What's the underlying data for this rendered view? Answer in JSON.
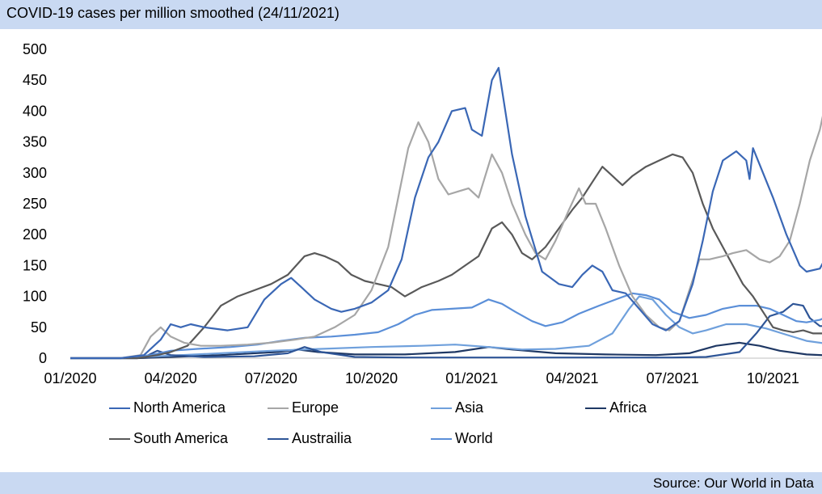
{
  "header": {
    "title": "COVID-19 cases per million smoothed (24/11/2021)"
  },
  "footer": {
    "source": "Source: Our World in Data"
  },
  "chart_data": {
    "type": "line",
    "title": "COVID-19 cases per million smoothed (24/11/2021)",
    "xlabel": "",
    "ylabel": "",
    "ylim": [
      0,
      500
    ],
    "yticks": [
      0,
      50,
      100,
      150,
      200,
      250,
      300,
      350,
      400,
      450,
      500
    ],
    "xticks": [
      "01/2020",
      "04/2020",
      "07/2020",
      "10/2020",
      "01/2021",
      "04/2021",
      "07/2021",
      "10/2021"
    ],
    "x_axis_note": "months since 01/2020",
    "grid": false,
    "legend_position": "bottom",
    "series": [
      {
        "name": "North America",
        "color": "#3a67b5",
        "points": [
          [
            0,
            0
          ],
          [
            1.5,
            0
          ],
          [
            2.2,
            5
          ],
          [
            2.7,
            30
          ],
          [
            3.0,
            55
          ],
          [
            3.3,
            50
          ],
          [
            3.6,
            55
          ],
          [
            4.0,
            50
          ],
          [
            4.7,
            45
          ],
          [
            5.3,
            50
          ],
          [
            5.8,
            95
          ],
          [
            6.3,
            120
          ],
          [
            6.6,
            130
          ],
          [
            6.9,
            115
          ],
          [
            7.3,
            95
          ],
          [
            7.8,
            80
          ],
          [
            8.1,
            75
          ],
          [
            8.5,
            80
          ],
          [
            9.0,
            90
          ],
          [
            9.5,
            110
          ],
          [
            9.9,
            160
          ],
          [
            10.3,
            260
          ],
          [
            10.7,
            325
          ],
          [
            11.0,
            350
          ],
          [
            11.4,
            400
          ],
          [
            11.8,
            405
          ],
          [
            12.0,
            370
          ],
          [
            12.3,
            360
          ],
          [
            12.6,
            450
          ],
          [
            12.8,
            470
          ],
          [
            13.0,
            400
          ],
          [
            13.2,
            330
          ],
          [
            13.6,
            230
          ],
          [
            14.1,
            140
          ],
          [
            14.6,
            120
          ],
          [
            15.0,
            115
          ],
          [
            15.3,
            135
          ],
          [
            15.6,
            150
          ],
          [
            15.9,
            140
          ],
          [
            16.2,
            110
          ],
          [
            16.6,
            105
          ],
          [
            17.0,
            80
          ],
          [
            17.4,
            55
          ],
          [
            17.8,
            45
          ],
          [
            18.2,
            60
          ],
          [
            18.6,
            120
          ],
          [
            18.9,
            190
          ],
          [
            19.2,
            270
          ],
          [
            19.5,
            320
          ],
          [
            19.9,
            335
          ],
          [
            20.2,
            320
          ],
          [
            20.3,
            290
          ],
          [
            20.4,
            340
          ],
          [
            20.7,
            300
          ],
          [
            21.0,
            260
          ],
          [
            21.4,
            200
          ],
          [
            21.8,
            150
          ],
          [
            22.0,
            140
          ],
          [
            22.4,
            145
          ],
          [
            22.6,
            165
          ],
          [
            22.8,
            175
          ]
        ]
      },
      {
        "name": "Europe",
        "color": "#a6a6a6",
        "points": [
          [
            0,
            0
          ],
          [
            1.5,
            0
          ],
          [
            2.1,
            5
          ],
          [
            2.4,
            35
          ],
          [
            2.7,
            50
          ],
          [
            3.0,
            35
          ],
          [
            3.4,
            25
          ],
          [
            3.9,
            20
          ],
          [
            4.5,
            20
          ],
          [
            5.3,
            22
          ],
          [
            6.0,
            25
          ],
          [
            6.7,
            30
          ],
          [
            7.3,
            35
          ],
          [
            7.9,
            50
          ],
          [
            8.5,
            70
          ],
          [
            9.0,
            110
          ],
          [
            9.5,
            180
          ],
          [
            9.8,
            260
          ],
          [
            10.1,
            340
          ],
          [
            10.4,
            382
          ],
          [
            10.7,
            350
          ],
          [
            11.0,
            290
          ],
          [
            11.3,
            265
          ],
          [
            11.6,
            270
          ],
          [
            11.9,
            275
          ],
          [
            12.2,
            260
          ],
          [
            12.6,
            330
          ],
          [
            12.9,
            300
          ],
          [
            13.2,
            250
          ],
          [
            13.6,
            200
          ],
          [
            13.9,
            170
          ],
          [
            14.2,
            160
          ],
          [
            14.5,
            190
          ],
          [
            14.9,
            240
          ],
          [
            15.2,
            275
          ],
          [
            15.4,
            250
          ],
          [
            15.7,
            250
          ],
          [
            16.0,
            210
          ],
          [
            16.4,
            150
          ],
          [
            16.8,
            100
          ],
          [
            17.2,
            70
          ],
          [
            17.6,
            50
          ],
          [
            17.9,
            45
          ],
          [
            18.2,
            60
          ],
          [
            18.5,
            110
          ],
          [
            18.8,
            160
          ],
          [
            19.1,
            160
          ],
          [
            19.5,
            165
          ],
          [
            19.8,
            170
          ],
          [
            20.2,
            175
          ],
          [
            20.6,
            160
          ],
          [
            20.9,
            155
          ],
          [
            21.2,
            165
          ],
          [
            21.5,
            190
          ],
          [
            21.8,
            250
          ],
          [
            22.1,
            320
          ],
          [
            22.4,
            370
          ],
          [
            22.8,
            470
          ]
        ]
      },
      {
        "name": "Asia",
        "color": "#6fa0dc",
        "points": [
          [
            0,
            0
          ],
          [
            1.5,
            0
          ],
          [
            2.2,
            2
          ],
          [
            3.0,
            4
          ],
          [
            4.5,
            8
          ],
          [
            6.0,
            12
          ],
          [
            7.5,
            15
          ],
          [
            9.0,
            18
          ],
          [
            10.5,
            20
          ],
          [
            11.5,
            22
          ],
          [
            12.5,
            18
          ],
          [
            13.5,
            14
          ],
          [
            14.5,
            15
          ],
          [
            15.5,
            20
          ],
          [
            16.2,
            40
          ],
          [
            16.7,
            80
          ],
          [
            17.0,
            100
          ],
          [
            17.4,
            95
          ],
          [
            17.8,
            70
          ],
          [
            18.2,
            50
          ],
          [
            18.6,
            40
          ],
          [
            19.0,
            45
          ],
          [
            19.6,
            55
          ],
          [
            20.2,
            55
          ],
          [
            20.8,
            48
          ],
          [
            21.4,
            38
          ],
          [
            22.0,
            28
          ],
          [
            22.8,
            22
          ]
        ]
      },
      {
        "name": "Africa",
        "color": "#1f3864",
        "points": [
          [
            0,
            0
          ],
          [
            2.0,
            0
          ],
          [
            3.0,
            2
          ],
          [
            4.5,
            5
          ],
          [
            6.2,
            10
          ],
          [
            6.8,
            14
          ],
          [
            7.4,
            10
          ],
          [
            8.5,
            6
          ],
          [
            10.0,
            6
          ],
          [
            11.5,
            10
          ],
          [
            12.5,
            18
          ],
          [
            13.2,
            14
          ],
          [
            14.5,
            8
          ],
          [
            16.0,
            6
          ],
          [
            17.5,
            5
          ],
          [
            18.5,
            8
          ],
          [
            19.3,
            20
          ],
          [
            20.0,
            25
          ],
          [
            20.6,
            20
          ],
          [
            21.2,
            12
          ],
          [
            22.0,
            6
          ],
          [
            22.8,
            4
          ]
        ]
      },
      {
        "name": "South America",
        "color": "#595959",
        "points": [
          [
            0,
            0
          ],
          [
            2.0,
            0
          ],
          [
            2.6,
            5
          ],
          [
            3.0,
            10
          ],
          [
            3.5,
            20
          ],
          [
            4.0,
            50
          ],
          [
            4.5,
            85
          ],
          [
            5.0,
            100
          ],
          [
            5.5,
            110
          ],
          [
            6.0,
            120
          ],
          [
            6.5,
            135
          ],
          [
            7.0,
            165
          ],
          [
            7.3,
            170
          ],
          [
            7.6,
            165
          ],
          [
            8.0,
            155
          ],
          [
            8.4,
            135
          ],
          [
            8.8,
            125
          ],
          [
            9.2,
            120
          ],
          [
            9.6,
            115
          ],
          [
            10.0,
            100
          ],
          [
            10.5,
            115
          ],
          [
            11.0,
            125
          ],
          [
            11.4,
            135
          ],
          [
            11.8,
            150
          ],
          [
            12.2,
            165
          ],
          [
            12.6,
            210
          ],
          [
            12.9,
            220
          ],
          [
            13.2,
            200
          ],
          [
            13.5,
            170
          ],
          [
            13.8,
            160
          ],
          [
            14.2,
            180
          ],
          [
            14.6,
            210
          ],
          [
            15.0,
            240
          ],
          [
            15.3,
            260
          ],
          [
            15.6,
            285
          ],
          [
            15.9,
            310
          ],
          [
            16.2,
            295
          ],
          [
            16.5,
            280
          ],
          [
            16.8,
            295
          ],
          [
            17.2,
            310
          ],
          [
            17.6,
            320
          ],
          [
            18.0,
            330
          ],
          [
            18.3,
            325
          ],
          [
            18.6,
            300
          ],
          [
            18.9,
            250
          ],
          [
            19.2,
            210
          ],
          [
            19.5,
            180
          ],
          [
            19.8,
            150
          ],
          [
            20.1,
            120
          ],
          [
            20.4,
            100
          ],
          [
            20.7,
            75
          ],
          [
            21.0,
            50
          ],
          [
            21.3,
            45
          ],
          [
            21.6,
            42
          ],
          [
            21.9,
            45
          ],
          [
            22.2,
            40
          ],
          [
            22.5,
            40
          ],
          [
            22.8,
            45
          ]
        ]
      },
      {
        "name": "Austrailia",
        "color": "#2e5597",
        "points": [
          [
            0,
            0
          ],
          [
            2.0,
            0
          ],
          [
            2.3,
            4
          ],
          [
            2.6,
            12
          ],
          [
            3.0,
            5
          ],
          [
            4.0,
            2
          ],
          [
            5.5,
            3
          ],
          [
            6.5,
            8
          ],
          [
            7.0,
            18
          ],
          [
            7.5,
            10
          ],
          [
            8.5,
            2
          ],
          [
            10.0,
            1
          ],
          [
            12.0,
            1
          ],
          [
            14.0,
            1
          ],
          [
            16.0,
            1
          ],
          [
            18.0,
            1
          ],
          [
            19.0,
            2
          ],
          [
            20.0,
            10
          ],
          [
            20.5,
            40
          ],
          [
            20.9,
            68
          ],
          [
            21.3,
            75
          ],
          [
            21.6,
            88
          ],
          [
            21.9,
            85
          ],
          [
            22.1,
            65
          ],
          [
            22.4,
            52
          ],
          [
            22.8,
            52
          ]
        ]
      },
      {
        "name": "World",
        "color": "#5b8fd8",
        "points": [
          [
            0,
            0
          ],
          [
            1.5,
            0
          ],
          [
            2.4,
            5
          ],
          [
            3.0,
            12
          ],
          [
            3.8,
            15
          ],
          [
            4.8,
            18
          ],
          [
            5.6,
            22
          ],
          [
            6.3,
            28
          ],
          [
            7.0,
            33
          ],
          [
            7.8,
            35
          ],
          [
            8.5,
            38
          ],
          [
            9.2,
            42
          ],
          [
            9.8,
            55
          ],
          [
            10.3,
            70
          ],
          [
            10.8,
            78
          ],
          [
            11.4,
            80
          ],
          [
            12.0,
            82
          ],
          [
            12.5,
            95
          ],
          [
            12.9,
            88
          ],
          [
            13.3,
            75
          ],
          [
            13.8,
            60
          ],
          [
            14.2,
            52
          ],
          [
            14.7,
            58
          ],
          [
            15.2,
            72
          ],
          [
            15.8,
            85
          ],
          [
            16.3,
            95
          ],
          [
            16.8,
            105
          ],
          [
            17.2,
            102
          ],
          [
            17.6,
            95
          ],
          [
            18.0,
            75
          ],
          [
            18.5,
            65
          ],
          [
            19.0,
            70
          ],
          [
            19.5,
            80
          ],
          [
            20.0,
            85
          ],
          [
            20.5,
            85
          ],
          [
            20.9,
            80
          ],
          [
            21.3,
            70
          ],
          [
            21.7,
            60
          ],
          [
            22.0,
            58
          ],
          [
            22.4,
            62
          ],
          [
            22.8,
            72
          ]
        ]
      }
    ]
  }
}
